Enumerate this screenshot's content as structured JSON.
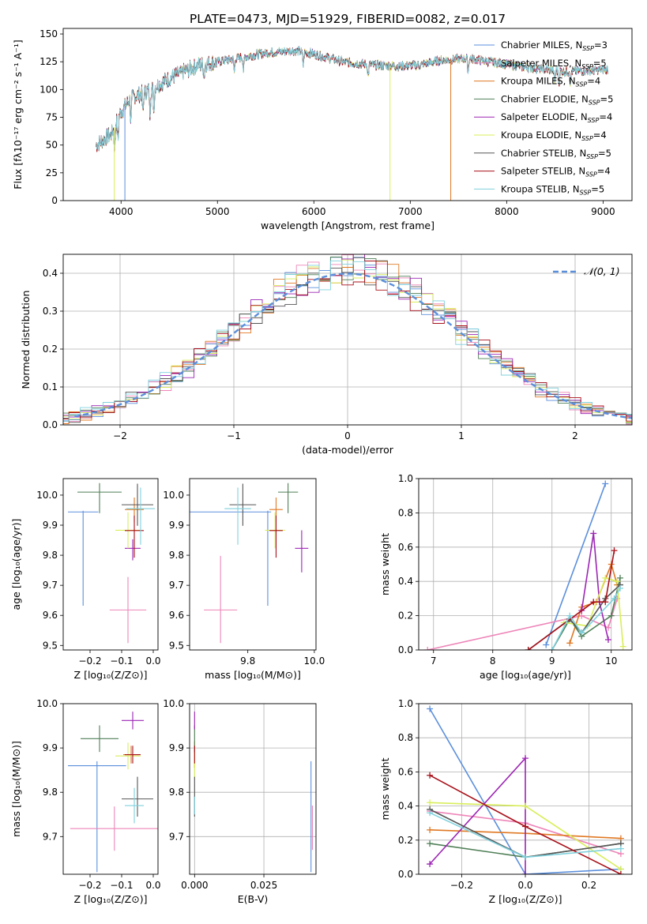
{
  "figure_title": "PLATE=0473, MJD=51929, FIBERID=0082, z=0.017",
  "palette": [
    "#5b8fdc",
    "#ee85b8",
    "#e07823",
    "#4f7f56",
    "#9c25b4",
    "#d9ee5a",
    "#555555",
    "#a8101a",
    "#7fd1dd"
  ],
  "legend_names": [
    [
      "Chabrier MILES, N",
      "SSP",
      "=3"
    ],
    [
      "Salpeter MILES, N",
      "SSP",
      "=5"
    ],
    [
      "Kroupa MILES, N",
      "SSP",
      "=4"
    ],
    [
      "Chabrier ELODIE, N",
      "SSP",
      "=5"
    ],
    [
      "Salpeter ELODIE, N",
      "SSP",
      "=4"
    ],
    [
      "Kroupa ELODIE, N",
      "SSP",
      "=4"
    ],
    [
      "Chabrier STELIB, N",
      "SSP",
      "=5"
    ],
    [
      "Salpeter STELIB, N",
      "SSP",
      "=4"
    ],
    [
      "Kroupa STELIB, N",
      "SSP",
      "=5"
    ]
  ],
  "chart_data": [
    {
      "id": "spectrum",
      "type": "line",
      "xlabel": "wavelength [Angstrom, rest frame]",
      "ylabel": "Flux [fλ10⁻¹⁷ erg cm⁻² s⁻¹ A⁻¹]",
      "xlim": [
        3400,
        9300
      ],
      "ylim": [
        0,
        155
      ],
      "xticks": [
        4000,
        5000,
        6000,
        7000,
        8000,
        9000
      ],
      "yticks": [
        0,
        25,
        50,
        75,
        100,
        125,
        150
      ],
      "continuum": [
        [
          3740,
          50
        ],
        [
          3900,
          60
        ],
        [
          4000,
          80
        ],
        [
          4100,
          92
        ],
        [
          4300,
          100
        ],
        [
          4500,
          110
        ],
        [
          4800,
          122
        ],
        [
          5000,
          125
        ],
        [
          5200,
          128
        ],
        [
          5500,
          133
        ],
        [
          5800,
          135
        ],
        [
          6000,
          132
        ],
        [
          6300,
          125
        ],
        [
          6600,
          122
        ],
        [
          6900,
          121
        ],
        [
          7100,
          122
        ],
        [
          7300,
          126
        ],
        [
          7600,
          128
        ],
        [
          7900,
          124
        ],
        [
          8200,
          120
        ],
        [
          8600,
          116
        ],
        [
          9050,
          118
        ]
      ],
      "absorption_lines": [
        3933,
        3968,
        4102,
        4227,
        4300,
        4340,
        4861,
        5175,
        5270,
        5890,
        6563,
        7600,
        8498,
        8542,
        8662
      ],
      "spikes": [
        {
          "x": 3930,
          "series": 5
        },
        {
          "x": 4040,
          "series": 0
        },
        {
          "x": 6790,
          "series": 5
        },
        {
          "x": 7420,
          "series": 2
        }
      ],
      "legend_position": "upper right"
    },
    {
      "id": "residuals",
      "type": "histogram",
      "xlabel": "(data-model)/error",
      "ylabel": "Normed distribution",
      "xlim": [
        -2.5,
        2.5
      ],
      "ylim": [
        0,
        0.45
      ],
      "xticks": [
        -2,
        -1,
        0,
        1,
        2
      ],
      "yticks": [
        0.0,
        0.1,
        0.2,
        0.3,
        0.4
      ],
      "bin_width": 0.1,
      "reference_curve": "N(0,1)",
      "legend_label": "𝒩(0, 1)"
    },
    {
      "id": "age_vs_Z",
      "type": "scatter",
      "xlabel": "Z [log₁₀(Z/Z⊙)]",
      "ylabel": "age  [log₁₀(age/yr)]",
      "xlim": [
        -0.285,
        0.015
      ],
      "ylim": [
        9.485,
        10.055
      ],
      "xticks": [
        -0.2,
        -0.1,
        0.0
      ],
      "yticks": [
        9.5,
        9.6,
        9.7,
        9.8,
        9.9,
        10.0
      ],
      "points": [
        {
          "x": -0.222,
          "xerr": [
            0.048,
            0.048
          ],
          "y": 9.944,
          "yerr": [
            0.312,
            0.004
          ]
        },
        {
          "x": -0.08,
          "xerr": [
            0.058,
            0.058
          ],
          "y": 9.618,
          "yerr": [
            0.11,
            0.11
          ]
        },
        {
          "x": -0.06,
          "xerr": [
            0.03,
            0.03
          ],
          "y": 9.952,
          "yerr": [
            0.04,
            0.04
          ]
        },
        {
          "x": -0.17,
          "xerr": [
            0.07,
            0.07
          ],
          "y": 10.01,
          "yerr": [
            0.07,
            0.03
          ]
        },
        {
          "x": -0.065,
          "xerr": [
            0.025,
            0.025
          ],
          "y": 9.823,
          "yerr": [
            0.04,
            0.03
          ]
        },
        {
          "x": -0.08,
          "xerr": [
            0.04,
            0.04
          ],
          "y": 9.883,
          "yerr": [
            0.06,
            0.06
          ]
        },
        {
          "x": -0.05,
          "xerr": [
            0.05,
            0.05
          ],
          "y": 9.968,
          "yerr": [
            0.07,
            0.07
          ]
        },
        {
          "x": -0.06,
          "xerr": [
            0.03,
            0.03
          ],
          "y": 9.882,
          "yerr": [
            0.09,
            0.05
          ]
        },
        {
          "x": -0.04,
          "xerr": [
            0.045,
            0.045
          ],
          "y": 9.955,
          "yerr": [
            0.12,
            0.07
          ]
        }
      ]
    },
    {
      "id": "age_vs_mass",
      "type": "scatter",
      "xlabel": "mass [log₁₀(M/M⊙)]",
      "ylabel": "",
      "xlim": [
        9.625,
        10.005
      ],
      "ylim": [
        9.485,
        10.055
      ],
      "xticks": [
        9.8,
        10.0
      ],
      "yticks": [
        9.5,
        9.6,
        9.7,
        9.8,
        9.9,
        10.0
      ],
      "points": [
        {
          "x": 9.86,
          "xerr": [
            0.24,
            0.01
          ],
          "y": 9.944,
          "yerr": [
            0.312,
            0.004
          ]
        },
        {
          "x": 9.718,
          "xerr": [
            0.05,
            0.05
          ],
          "y": 9.618,
          "yerr": [
            0.11,
            0.18
          ]
        },
        {
          "x": 9.885,
          "xerr": [
            0.02,
            0.02
          ],
          "y": 9.952,
          "yerr": [
            0.04,
            0.04
          ]
        },
        {
          "x": 9.921,
          "xerr": [
            0.03,
            0.03
          ],
          "y": 10.01,
          "yerr": [
            0.07,
            0.03
          ]
        },
        {
          "x": 9.962,
          "xerr": [
            0.02,
            0.02
          ],
          "y": 9.823,
          "yerr": [
            0.08,
            0.06
          ]
        },
        {
          "x": 9.882,
          "xerr": [
            0.03,
            0.03
          ],
          "y": 9.883,
          "yerr": [
            0.06,
            0.06
          ]
        },
        {
          "x": 9.785,
          "xerr": [
            0.04,
            0.04
          ],
          "y": 9.968,
          "yerr": [
            0.07,
            0.07
          ]
        },
        {
          "x": 9.885,
          "xerr": [
            0.02,
            0.02
          ],
          "y": 9.882,
          "yerr": [
            0.09,
            0.05
          ]
        },
        {
          "x": 9.77,
          "xerr": [
            0.04,
            0.04
          ],
          "y": 9.955,
          "yerr": [
            0.12,
            0.07
          ]
        }
      ]
    },
    {
      "id": "weight_vs_age",
      "type": "line",
      "xlabel": "age  [log₁₀(age/yr)]",
      "ylabel": "mass weight",
      "xlim": [
        6.75,
        10.35
      ],
      "ylim": [
        0,
        1.0
      ],
      "xticks": [
        7,
        8,
        9,
        10
      ],
      "yticks": [
        0.0,
        0.2,
        0.4,
        0.6,
        0.8,
        1.0
      ],
      "series": [
        {
          "x": [
            8.9,
            9.9
          ],
          "y": [
            0.03,
            0.97
          ]
        },
        {
          "x": [
            6.9,
            9.5,
            9.95,
            10.1
          ],
          "y": [
            0.0,
            0.2,
            0.13,
            0.3
          ]
        },
        {
          "x": [
            9.3,
            9.5,
            9.75,
            10.0,
            10.1
          ],
          "y": [
            0.04,
            0.25,
            0.28,
            0.5,
            0.38
          ]
        },
        {
          "x": [
            9.0,
            9.3,
            9.5,
            10.0,
            10.15
          ],
          "y": [
            0.0,
            0.18,
            0.08,
            0.2,
            0.42
          ]
        },
        {
          "x": [
            9.5,
            9.7,
            9.8,
            9.95
          ],
          "y": [
            0.23,
            0.68,
            0.28,
            0.06
          ]
        },
        {
          "x": [
            9.2,
            9.6,
            9.9,
            10.1,
            10.2
          ],
          "y": [
            0.16,
            0.14,
            0.42,
            0.4,
            0.02
          ]
        },
        {
          "x": [
            8.6,
            9.3,
            9.5,
            9.9,
            10.15
          ],
          "y": [
            0.0,
            0.18,
            0.1,
            0.3,
            0.38
          ]
        },
        {
          "x": [
            8.6,
            9.7,
            9.9,
            10.05
          ],
          "y": [
            0.0,
            0.28,
            0.28,
            0.58
          ]
        },
        {
          "x": [
            9.0,
            9.3,
            9.5,
            10.05,
            10.15
          ],
          "y": [
            0.0,
            0.2,
            0.1,
            0.3,
            0.36
          ]
        }
      ]
    },
    {
      "id": "mass_vs_Z",
      "type": "scatter",
      "xlabel": "Z [log₁₀(Z/Z⊙)]",
      "ylabel": "mass [log₁₀(M/M⊙)]",
      "xlim": [
        -0.285,
        0.015
      ],
      "ylim": [
        9.615,
        10.0
      ],
      "xticks": [
        -0.2,
        -0.1,
        0.0
      ],
      "yticks": [
        9.7,
        9.8,
        9.9,
        10.0
      ],
      "points": [
        {
          "x": -0.178,
          "xerr": [
            0.092,
            0.092
          ],
          "y": 9.86,
          "yerr": [
            0.24,
            0.01
          ]
        },
        {
          "x": -0.123,
          "xerr": [
            0.14,
            0.14
          ],
          "y": 9.718,
          "yerr": [
            0.05,
            0.05
          ]
        },
        {
          "x": -0.07,
          "xerr": [
            0.025,
            0.025
          ],
          "y": 9.885,
          "yerr": [
            0.02,
            0.02
          ]
        },
        {
          "x": -0.17,
          "xerr": [
            0.06,
            0.06
          ],
          "y": 9.921,
          "yerr": [
            0.03,
            0.03
          ]
        },
        {
          "x": -0.065,
          "xerr": [
            0.035,
            0.035
          ],
          "y": 9.962,
          "yerr": [
            0.02,
            0.02
          ]
        },
        {
          "x": -0.08,
          "xerr": [
            0.04,
            0.04
          ],
          "y": 9.882,
          "yerr": [
            0.03,
            0.03
          ]
        },
        {
          "x": -0.05,
          "xerr": [
            0.05,
            0.05
          ],
          "y": 9.785,
          "yerr": [
            0.04,
            0.05
          ]
        },
        {
          "x": -0.065,
          "xerr": [
            0.025,
            0.025
          ],
          "y": 9.885,
          "yerr": [
            0.02,
            0.02
          ]
        },
        {
          "x": -0.06,
          "xerr": [
            0.03,
            0.03
          ],
          "y": 9.77,
          "yerr": [
            0.04,
            0.04
          ]
        }
      ]
    },
    {
      "id": "mass_vs_ebv",
      "type": "scatter",
      "xlabel": "E(B-V)",
      "ylabel": "",
      "xlim": [
        -0.0018,
        0.0438
      ],
      "ylim": [
        9.615,
        10.0
      ],
      "xticks": [
        0.0,
        0.025
      ],
      "xticklabels": [
        "0.000",
        "0.025"
      ],
      "yticks": [
        9.7,
        9.8,
        9.9,
        10.0
      ],
      "points": [
        {
          "x": 0.042,
          "xerr": [
            0,
            0
          ],
          "y": 9.8,
          "yerr": [
            0.18,
            0.07
          ]
        },
        {
          "x": 0.0425,
          "xerr": [
            0,
            0
          ],
          "y": 9.72,
          "yerr": [
            0.05,
            0.05
          ]
        },
        {
          "x": 0.0,
          "xerr": [
            0,
            0
          ],
          "y": 9.885,
          "yerr": [
            0.03,
            0.03
          ]
        },
        {
          "x": 0.0,
          "xerr": [
            0,
            0
          ],
          "y": 9.921,
          "yerr": [
            0.03,
            0.03
          ]
        },
        {
          "x": 0.0,
          "xerr": [
            0,
            0
          ],
          "y": 9.962,
          "yerr": [
            0.02,
            0.02
          ]
        },
        {
          "x": 0.0,
          "xerr": [
            0,
            0
          ],
          "y": 9.86,
          "yerr": [
            0.03,
            0.03
          ]
        },
        {
          "x": 0.0,
          "xerr": [
            0,
            0
          ],
          "y": 9.785,
          "yerr": [
            0.04,
            0.05
          ]
        },
        {
          "x": 0.0,
          "xerr": [
            0,
            0
          ],
          "y": 9.885,
          "yerr": [
            0.02,
            0.02
          ]
        },
        {
          "x": 0.0,
          "xerr": [
            0,
            0
          ],
          "y": 9.77,
          "yerr": [
            0.02,
            0.02
          ]
        }
      ]
    },
    {
      "id": "weight_vs_Z",
      "type": "line",
      "xlabel": "Z [log₁₀(Z/Z⊙)]",
      "ylabel": "mass weight",
      "xlim": [
        -0.335,
        0.335
      ],
      "ylim": [
        0,
        1.0
      ],
      "xticks": [
        -0.2,
        0.0,
        0.2
      ],
      "xticklabels": [
        "−0.2",
        "0.0",
        "0.2"
      ],
      "yticks": [
        0.0,
        0.2,
        0.4,
        0.6,
        0.8,
        1.0
      ],
      "series": [
        {
          "x": [
            -0.3,
            0.0,
            0.3
          ],
          "y": [
            0.97,
            0.0,
            0.03
          ]
        },
        {
          "x": [
            -0.3,
            0.0,
            0.3
          ],
          "y": [
            0.37,
            0.3,
            0.12
          ]
        },
        {
          "x": [
            -0.3,
            0.0,
            0.3
          ],
          "y": [
            0.26,
            0.24,
            0.21
          ]
        },
        {
          "x": [
            -0.3,
            0.0,
            0.3
          ],
          "y": [
            0.18,
            0.1,
            0.18
          ]
        },
        {
          "x": [
            -0.3,
            0.0,
            0.0
          ],
          "y": [
            0.06,
            0.68,
            0.0
          ]
        },
        {
          "x": [
            -0.3,
            0.0,
            0.3
          ],
          "y": [
            0.42,
            0.4,
            0.03
          ]
        },
        {
          "x": [
            -0.3,
            0.0,
            0.3
          ],
          "y": [
            0.38,
            0.1,
            0.18
          ]
        },
        {
          "x": [
            -0.3,
            0.0,
            0.3
          ],
          "y": [
            0.58,
            0.28,
            0.0
          ]
        },
        {
          "x": [
            -0.3,
            0.0,
            0.3
          ],
          "y": [
            0.36,
            0.1,
            0.15
          ]
        }
      ]
    }
  ]
}
